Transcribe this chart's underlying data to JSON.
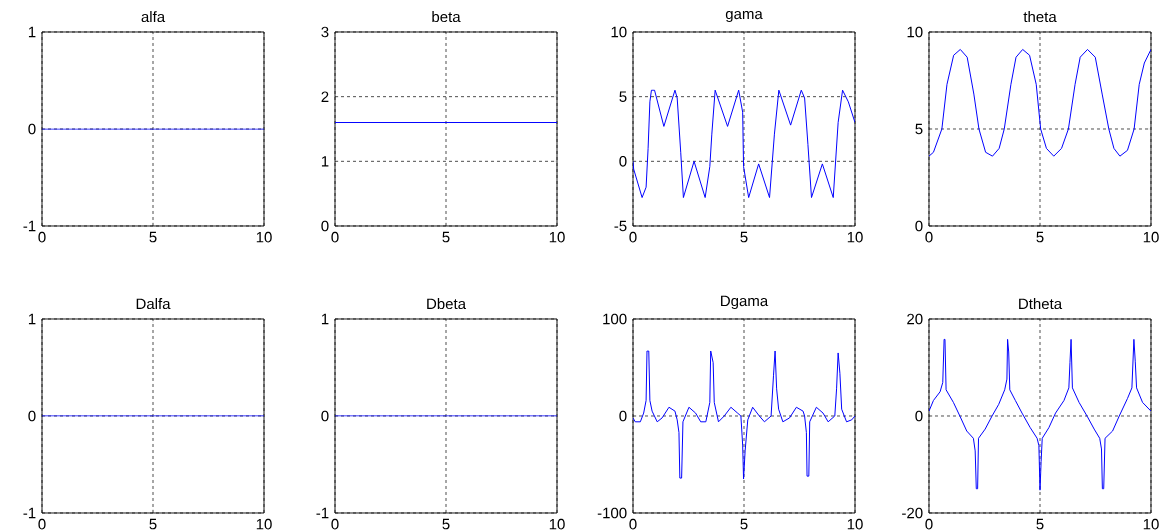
{
  "chart_data": [
    {
      "type": "line",
      "title": "alfa",
      "x": [
        0,
        10
      ],
      "values": [
        0,
        0
      ],
      "color": "#0000ff",
      "xlim": [
        0,
        10
      ],
      "xticks": [
        0,
        5,
        10
      ],
      "ylim": [
        -1,
        1
      ],
      "yticks": [
        -1,
        0,
        1
      ],
      "grid": true
    },
    {
      "type": "line",
      "title": "beta",
      "x": [
        0,
        10
      ],
      "values": [
        1.6,
        1.6
      ],
      "color": "#0000ff",
      "xlim": [
        0,
        10
      ],
      "xticks": [
        0,
        5,
        10
      ],
      "ylim": [
        0,
        3
      ],
      "yticks": [
        0,
        1,
        2,
        3
      ],
      "grid": true
    },
    {
      "type": "line",
      "title": "gama",
      "x": [
        0,
        0.03,
        0.41,
        0.59,
        0.68,
        0.76,
        0.83,
        0.97,
        1.39,
        1.89,
        1.99,
        2.15,
        2.27,
        2.75,
        3.25,
        3.46,
        3.55,
        3.7,
        4.26,
        4.76,
        4.94,
        4.98,
        5.21,
        5.66,
        6.15,
        6.37,
        6.57,
        7.1,
        7.58,
        7.73,
        7.88,
        8.04,
        8.53,
        9.02,
        9.24,
        9.44,
        9.7,
        10
      ],
      "values": [
        0,
        -0.6,
        -2.8,
        -2,
        1,
        4.6,
        5.5,
        5.5,
        2.7,
        5.5,
        4.9,
        0.7,
        -2.8,
        0,
        -2.8,
        -0.4,
        2.1,
        5.5,
        2.7,
        5.5,
        3.8,
        -0.4,
        -2.8,
        -0.2,
        -2.8,
        2.1,
        5.5,
        2.8,
        5.5,
        4.9,
        1.3,
        -2.8,
        -0.2,
        -2.8,
        3,
        5.5,
        4.6,
        3
      ],
      "color": "#0000ff",
      "xlim": [
        0,
        10
      ],
      "xticks": [
        0,
        5,
        10
      ],
      "ylim": [
        -5,
        10
      ],
      "yticks": [
        -5,
        0,
        5,
        10
      ],
      "grid": true
    },
    {
      "type": "line",
      "title": "theta",
      "x": [
        0,
        0.2,
        0.58,
        0.81,
        1.11,
        1.41,
        1.72,
        2.02,
        2.25,
        2.55,
        2.86,
        3.16,
        3.39,
        3.69,
        3.92,
        4.22,
        4.53,
        4.83,
        5.03,
        5.29,
        5.62,
        5.97,
        6.28,
        6.58,
        6.81,
        7.14,
        7.49,
        7.8,
        8.1,
        8.33,
        8.6,
        8.94,
        9.24,
        9.47,
        9.7,
        10
      ],
      "values": [
        3.6,
        3.8,
        5,
        7.3,
        8.8,
        9.1,
        8.7,
        6.8,
        5,
        3.8,
        3.6,
        4,
        5,
        7.3,
        8.7,
        9.1,
        8.8,
        7.3,
        5,
        4,
        3.6,
        4,
        5,
        7.3,
        8.7,
        9.1,
        8.7,
        6.8,
        5,
        4,
        3.6,
        3.9,
        5,
        7.3,
        8.4,
        9.1
      ],
      "color": "#0000ff",
      "xlim": [
        0,
        10
      ],
      "xticks": [
        0,
        5,
        10
      ],
      "ylim": [
        0,
        10
      ],
      "yticks": [
        0,
        5,
        10
      ],
      "grid": true
    },
    {
      "type": "line",
      "title": "Dalfa",
      "x": [
        0,
        10
      ],
      "values": [
        0,
        0
      ],
      "color": "#0000ff",
      "xlim": [
        0,
        10
      ],
      "xticks": [
        0,
        5,
        10
      ],
      "ylim": [
        -1,
        1
      ],
      "yticks": [
        -1,
        0,
        1
      ],
      "grid": true
    },
    {
      "type": "line",
      "title": "Dbeta",
      "x": [
        0,
        10
      ],
      "values": [
        0,
        0
      ],
      "color": "#0000ff",
      "xlim": [
        0,
        10
      ],
      "xticks": [
        0,
        5,
        10
      ],
      "ylim": [
        -1,
        1
      ],
      "yticks": [
        -1,
        0,
        1
      ],
      "grid": true
    },
    {
      "type": "line",
      "title": "Dgama",
      "x": [
        0,
        0.1,
        0.33,
        0.48,
        0.59,
        0.63,
        0.71,
        0.76,
        0.86,
        1.09,
        1.31,
        1.62,
        1.89,
        1.99,
        2.07,
        2.11,
        2.19,
        2.25,
        2.52,
        2.82,
        3.05,
        3.28,
        3.46,
        3.5,
        3.61,
        3.66,
        3.85,
        4.11,
        4.41,
        4.71,
        4.86,
        4.94,
        4.98,
        5.05,
        5.17,
        5.39,
        5.69,
        5.92,
        6.22,
        6.33,
        6.4,
        6.47,
        6.56,
        6.75,
        7.05,
        7.36,
        7.66,
        7.73,
        7.81,
        7.84,
        7.92,
        7.96,
        8.26,
        8.56,
        8.79,
        9.09,
        9.17,
        9.24,
        9.32,
        9.4,
        9.62,
        9.85,
        10
      ],
      "values": [
        -2,
        -6,
        -6,
        3,
        16,
        67,
        67,
        16,
        5,
        -6,
        -2,
        9,
        5,
        -4,
        -17,
        -64,
        -64,
        -6,
        9,
        3,
        -6,
        -6,
        14,
        67,
        55,
        14,
        -6,
        0,
        9,
        3,
        0,
        -30,
        -65,
        -36,
        -4,
        9,
        0,
        -6,
        0,
        42,
        67,
        28,
        7,
        -6,
        -2,
        9,
        5,
        0,
        -17,
        -62,
        -62,
        -6,
        9,
        3,
        -6,
        0,
        28,
        65,
        44,
        7,
        -6,
        -4,
        0
      ],
      "color": "#0000ff",
      "xlim": [
        0,
        10
      ],
      "xticks": [
        0,
        5,
        10
      ],
      "ylim": [
        -100,
        100
      ],
      "yticks": [
        -100,
        0,
        100
      ],
      "grid": true
    },
    {
      "type": "line",
      "title": "Dtheta",
      "x": [
        0,
        0.2,
        0.5,
        0.62,
        0.68,
        0.72,
        0.77,
        1.1,
        1.4,
        1.7,
        2.0,
        2.08,
        2.13,
        2.19,
        2.23,
        2.53,
        2.84,
        3.14,
        3.41,
        3.51,
        3.54,
        3.59,
        3.64,
        3.89,
        4.19,
        4.56,
        4.87,
        4.95,
        5.0,
        5.05,
        5.1,
        5.4,
        5.7,
        6.08,
        6.3,
        6.35,
        6.4,
        6.46,
        6.76,
        7.13,
        7.44,
        7.69,
        7.77,
        7.81,
        7.87,
        7.93,
        8.27,
        8.57,
        8.94,
        9.14,
        9.23,
        9.29,
        9.35,
        9.62,
        10
      ],
      "values": [
        1,
        3.2,
        5,
        6.9,
        15.8,
        15.8,
        5.4,
        2.8,
        -0.1,
        -3.1,
        -4.6,
        -7.2,
        -15,
        -15,
        -4.6,
        -2.7,
        0,
        2.4,
        5.4,
        7.6,
        15.8,
        13.2,
        5.4,
        3.2,
        0.6,
        -2.4,
        -4.6,
        -6.1,
        -15.3,
        -9.4,
        -4.6,
        -2.4,
        0.6,
        3.2,
        5.8,
        11,
        15.8,
        5.8,
        2.8,
        -0.1,
        -2.7,
        -4.6,
        -6.8,
        -15,
        -15,
        -4.6,
        -3.1,
        0,
        3.6,
        5.8,
        15.8,
        11.3,
        5.8,
        2.8,
        1
      ],
      "color": "#0000ff",
      "xlim": [
        0,
        10
      ],
      "xticks": [
        0,
        5,
        10
      ],
      "ylim": [
        -20,
        20
      ],
      "yticks": [
        -20,
        0,
        20
      ],
      "grid": true
    }
  ]
}
